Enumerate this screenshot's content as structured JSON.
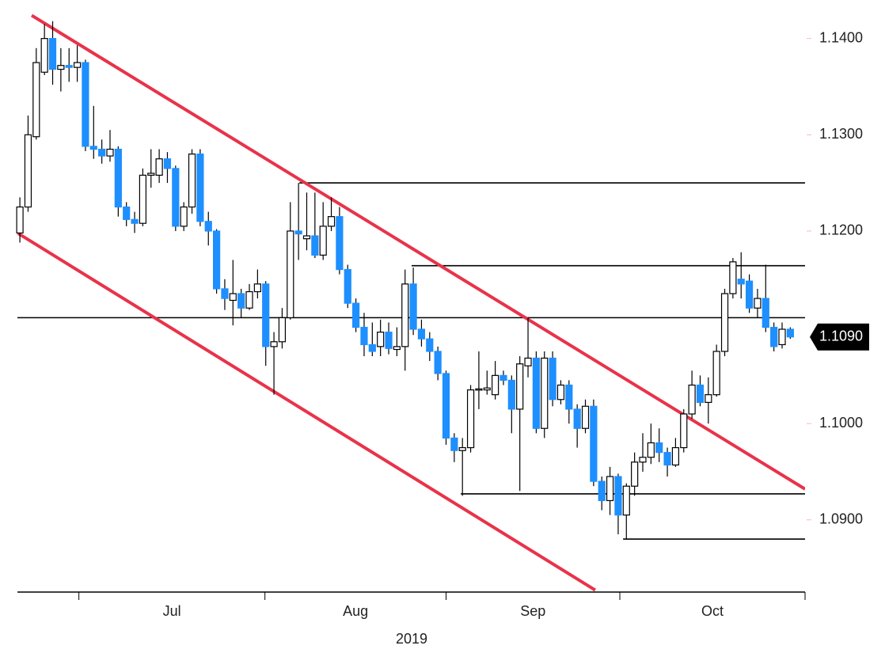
{
  "chart_data": {
    "type": "candlestick",
    "open": [
      1.1198,
      1.1225,
      1.1298,
      1.1365,
      1.14,
      1.1368,
      1.1372,
      1.137,
      1.1375,
      1.1288,
      1.1285,
      1.1278,
      1.1285,
      1.1225,
      1.1212,
      1.1208,
      1.1258,
      1.1258,
      1.1275,
      1.1265,
      1.1205,
      1.1225,
      1.128,
      1.121,
      1.12,
      1.114,
      1.1128,
      1.1135,
      1.112,
      1.1137,
      1.1145,
      1.108,
      1.1085,
      1.111,
      1.12,
      1.1192,
      1.1195,
      1.1175,
      1.1205,
      1.1215,
      1.116,
      1.1125,
      1.11,
      1.1082,
      1.108,
      1.1095,
      1.1077,
      1.108,
      1.1145,
      1.1098,
      1.1088,
      1.1075,
      1.1052,
      1.0985,
      1.0972,
      1.0975,
      1.1035,
      1.1035,
      1.103,
      1.105,
      1.1045,
      1.1015,
      1.106,
      1.1068,
      1.0995,
      1.1068,
      1.1025,
      1.104,
      1.1015,
      1.0995,
      1.1018,
      1.094,
      1.092,
      1.0945,
      1.0905,
      1.0935,
      1.096,
      1.0965,
      1.098,
      1.097,
      1.0957,
      1.0975,
      1.101,
      1.104,
      1.1022,
      1.103,
      1.1075,
      1.1135,
      1.115,
      1.1148,
      1.112,
      1.113,
      1.11,
      1.1082,
      1.1098
    ],
    "high": [
      1.1235,
      1.132,
      1.139,
      1.1415,
      1.1418,
      1.139,
      1.139,
      1.1393,
      1.1378,
      1.133,
      1.1295,
      1.1305,
      1.1288,
      1.123,
      1.122,
      1.1265,
      1.1285,
      1.1285,
      1.1282,
      1.1268,
      1.123,
      1.1285,
      1.1285,
      1.122,
      1.1202,
      1.115,
      1.117,
      1.114,
      1.1145,
      1.116,
      1.1148,
      1.1095,
      1.112,
      1.123,
      1.125,
      1.124,
      1.124,
      1.123,
      1.1235,
      1.1225,
      1.1165,
      1.113,
      1.1115,
      1.1105,
      1.1108,
      1.1105,
      1.11,
      1.116,
      1.1162,
      1.1108,
      1.1095,
      1.108,
      1.1055,
      1.099,
      1.0985,
      1.104,
      1.1075,
      1.1055,
      1.1065,
      1.1055,
      1.105,
      1.107,
      1.111,
      1.1075,
      1.1075,
      1.1075,
      1.1045,
      1.1045,
      1.102,
      1.1025,
      1.1025,
      1.0945,
      1.0955,
      1.0948,
      1.0938,
      1.097,
      1.099,
      1.1,
      1.0995,
      1.0975,
      1.0985,
      1.1015,
      1.1055,
      1.105,
      1.1048,
      1.1082,
      1.114,
      1.1172,
      1.1178,
      1.1155,
      1.114,
      1.1165,
      1.1105,
      1.1105,
      1.11
    ],
    "low": [
      1.1188,
      1.122,
      1.1295,
      1.1362,
      1.1352,
      1.1345,
      1.1355,
      1.1355,
      1.1283,
      1.1275,
      1.127,
      1.1272,
      1.1215,
      1.1205,
      1.1198,
      1.1205,
      1.1245,
      1.125,
      1.125,
      1.12,
      1.12,
      1.1218,
      1.1205,
      1.1185,
      1.1135,
      1.1118,
      1.1102,
      1.111,
      1.1118,
      1.113,
      1.106,
      1.103,
      1.1078,
      1.1108,
      1.117,
      1.118,
      1.1172,
      1.117,
      1.12,
      1.1155,
      1.112,
      1.1095,
      1.107,
      1.107,
      1.107,
      1.1072,
      1.107,
      1.1055,
      1.1092,
      1.108,
      1.1065,
      1.1045,
      1.0978,
      1.096,
      1.0925,
      1.097,
      1.1015,
      1.103,
      1.1025,
      1.104,
      1.099,
      1.093,
      1.1048,
      1.099,
      1.0985,
      1.1018,
      1.102,
      1.1,
      1.0975,
      1.099,
      1.0935,
      1.091,
      1.0905,
      1.0885,
      1.088,
      1.0925,
      1.095,
      1.0958,
      1.096,
      1.0945,
      1.0955,
      1.097,
      1.1005,
      1.1018,
      1.1,
      1.1028,
      1.107,
      1.113,
      1.113,
      1.1115,
      1.111,
      1.1095,
      1.1075,
      1.1078,
      1.1088
    ],
    "close": [
      1.1225,
      1.13,
      1.1375,
      1.14,
      1.1368,
      1.1372,
      1.137,
      1.1375,
      1.1288,
      1.1285,
      1.1278,
      1.1285,
      1.1225,
      1.1212,
      1.1208,
      1.1258,
      1.126,
      1.1275,
      1.1265,
      1.1205,
      1.1225,
      1.128,
      1.121,
      1.12,
      1.114,
      1.113,
      1.1135,
      1.112,
      1.1137,
      1.1145,
      1.108,
      1.1085,
      1.111,
      1.12,
      1.1197,
      1.1195,
      1.1175,
      1.1205,
      1.1215,
      1.116,
      1.1125,
      1.11,
      1.1082,
      1.1075,
      1.1095,
      1.1078,
      1.108,
      1.1145,
      1.1098,
      1.1088,
      1.1075,
      1.1052,
      1.0985,
      1.0972,
      1.0975,
      1.1035,
      1.1036,
      1.1037,
      1.105,
      1.1045,
      1.1015,
      1.1062,
      1.1068,
      1.0995,
      1.1068,
      1.1025,
      1.104,
      1.1015,
      1.0995,
      1.1018,
      1.094,
      1.092,
      1.0945,
      1.0905,
      1.0935,
      1.096,
      1.0965,
      1.098,
      1.097,
      1.0957,
      1.0975,
      1.101,
      1.104,
      1.1022,
      1.103,
      1.1075,
      1.1135,
      1.1168,
      1.1145,
      1.112,
      1.113,
      1.11,
      1.108,
      1.1098,
      1.109
    ],
    "up_color": "#ffffff",
    "down_color": "#1e8fff",
    "xlim": [
      -0.3,
      95.8
    ],
    "xticks": [
      7.2,
      29.9,
      52.0,
      73.2,
      95.8
    ],
    "month_labels": [
      "Jul",
      "Aug",
      "Sep",
      "Oct"
    ],
    "xlabel": "2019",
    "ylim": [
      1.0825,
      1.144
    ],
    "yticks": [
      {
        "value": 1.14,
        "label": "1.1400"
      },
      {
        "value": 1.13,
        "label": "1.1300"
      },
      {
        "value": 1.12,
        "label": "1.1200"
      },
      {
        "value": 1.1,
        "label": "1.1000"
      },
      {
        "value": 1.09,
        "label": "1.0900"
      }
    ],
    "current_price": {
      "value": 1.109,
      "label": "1.1090"
    },
    "channel_color": "#e8334a",
    "channel": [
      {
        "x": [
          1.44,
          95.8
        ],
        "y": [
          1.1424,
          1.0932
        ]
      },
      {
        "x": [
          -0.3,
          70.2
        ],
        "y": [
          1.1198,
          1.0827
        ]
      }
    ],
    "levels": [
      {
        "value": 1.125,
        "start": 34.1
      },
      {
        "value": 1.1164,
        "start": 47.8
      },
      {
        "value": 1.111,
        "start": -0.3
      },
      {
        "value": 1.0927,
        "start": 53.8
      },
      {
        "value": 1.088,
        "start": 73.6
      }
    ]
  }
}
